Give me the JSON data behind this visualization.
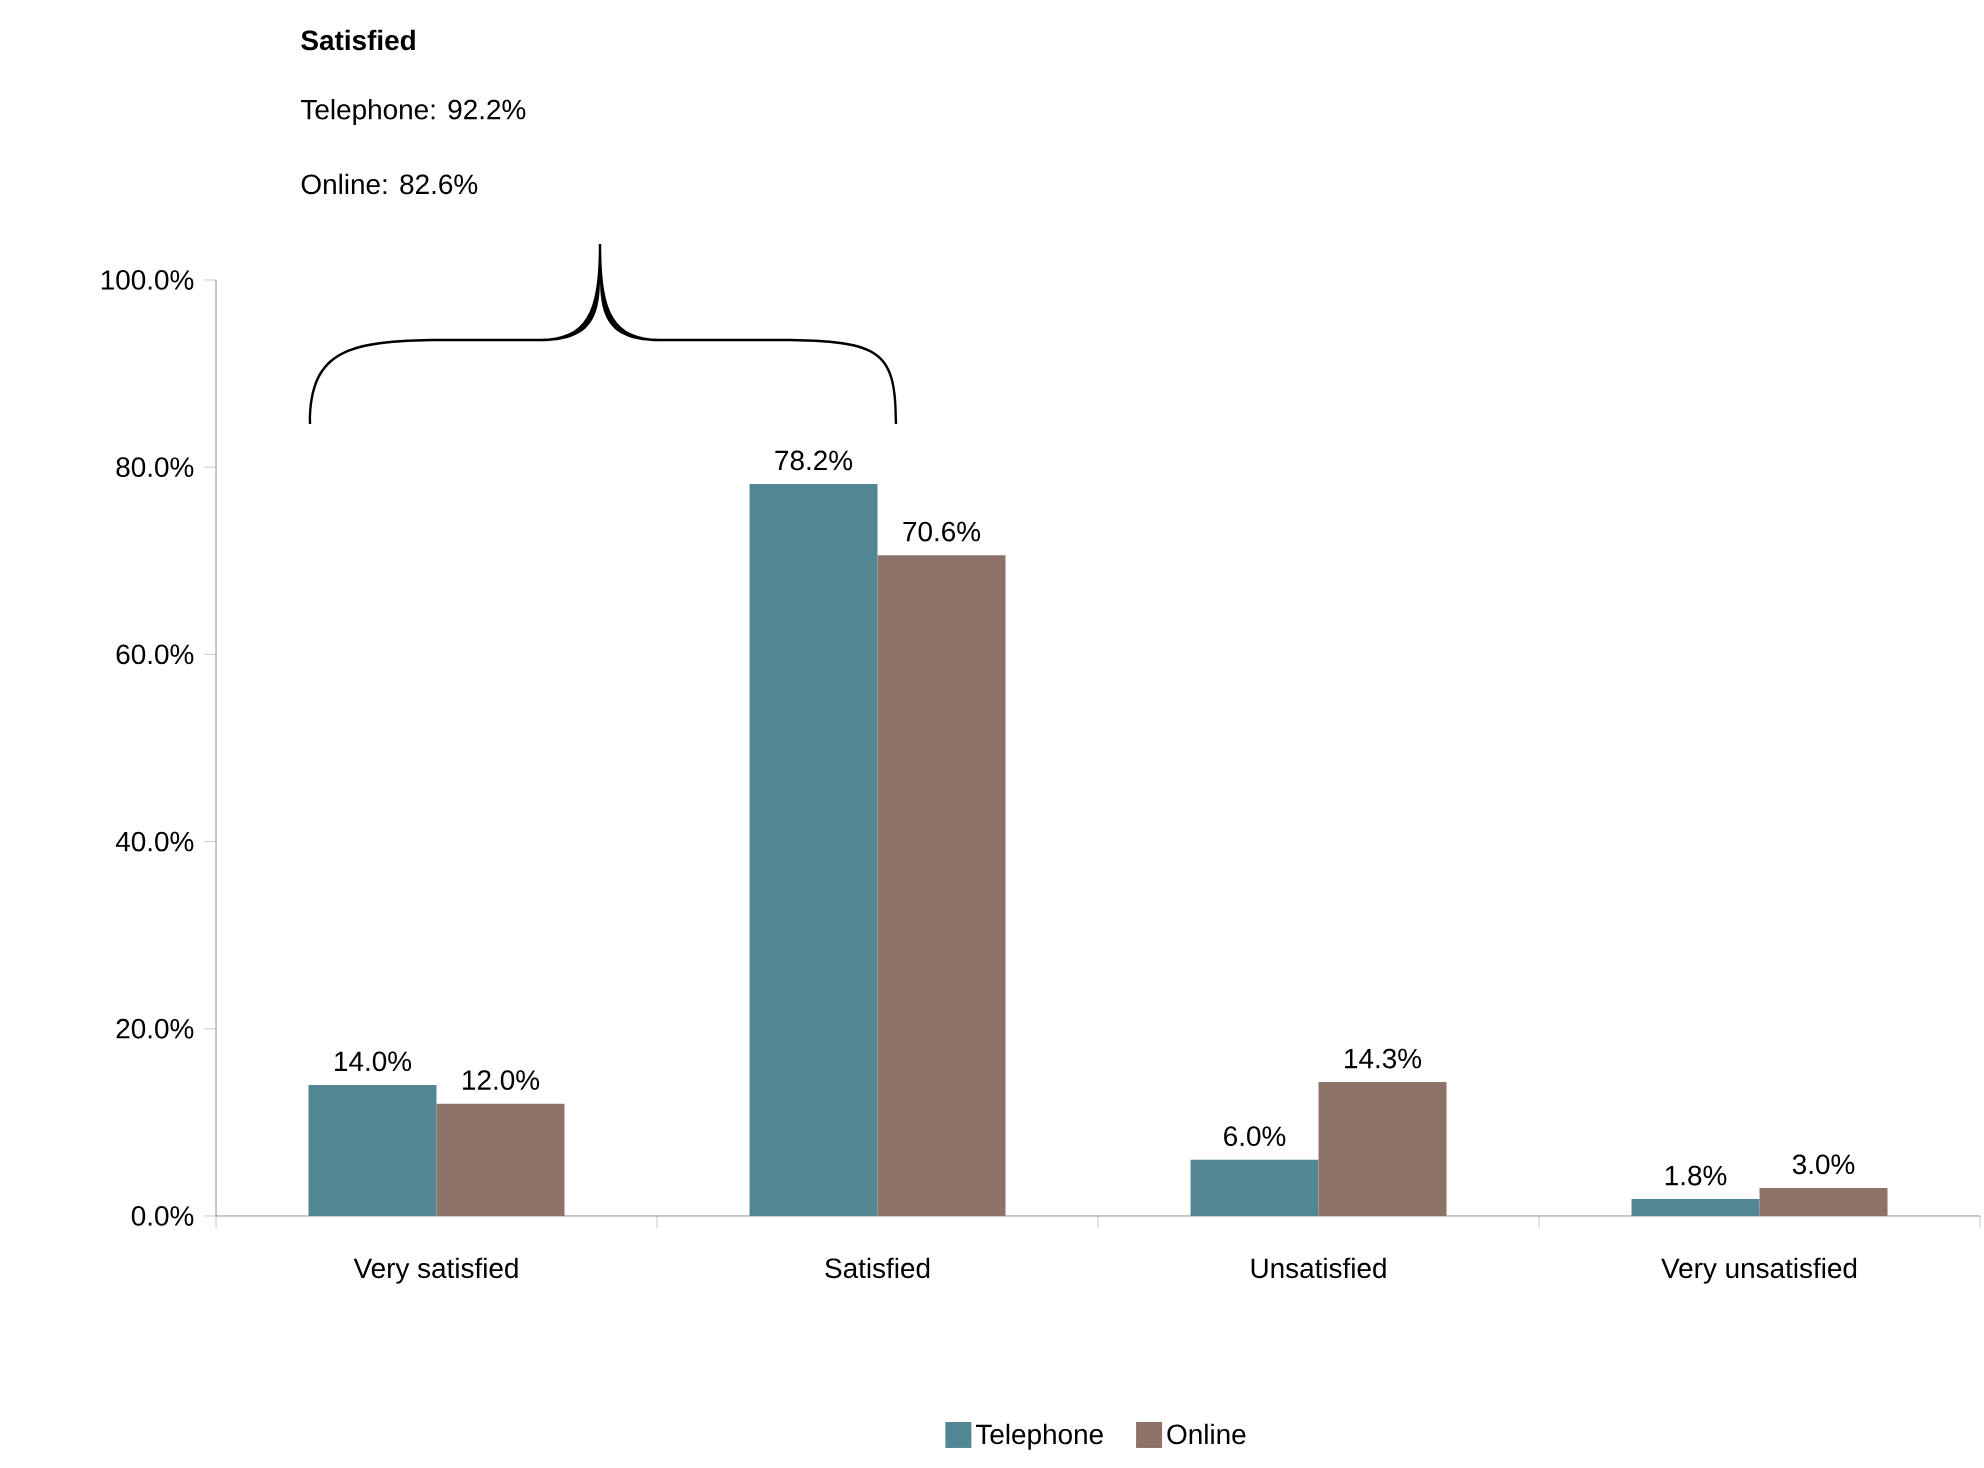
{
  "chart_data": {
    "type": "bar",
    "categories": [
      "Very satisfied",
      "Satisfied",
      "Unsatisfied",
      "Very unsatisfied"
    ],
    "series": [
      {
        "name": "Telephone",
        "color": "#528693",
        "values": [
          14.0,
          78.2,
          6.0,
          1.8
        ],
        "value_labels": [
          "14.0%",
          "78.2%",
          "6.0%",
          "1.8%"
        ]
      },
      {
        "name": "Online",
        "color": "#8d7367",
        "values": [
          12.0,
          70.6,
          14.3,
          3.0
        ],
        "value_labels": [
          "12.0%",
          "70.6%",
          "14.3%",
          "3.0%"
        ]
      }
    ],
    "ylim": [
      0,
      100
    ],
    "yticks": [
      {
        "value": 0,
        "label": "0.0%"
      },
      {
        "value": 20,
        "label": "20.0%"
      },
      {
        "value": 40,
        "label": "40.0%"
      },
      {
        "value": 60,
        "label": "60.0%"
      },
      {
        "value": 80,
        "label": "80.0%"
      },
      {
        "value": 100,
        "label": "100.0%"
      }
    ],
    "legend": "bottom",
    "annotations": [
      "Satisfied",
      "Telephone: 92.2%",
      "Online: 82.6%"
    ]
  }
}
